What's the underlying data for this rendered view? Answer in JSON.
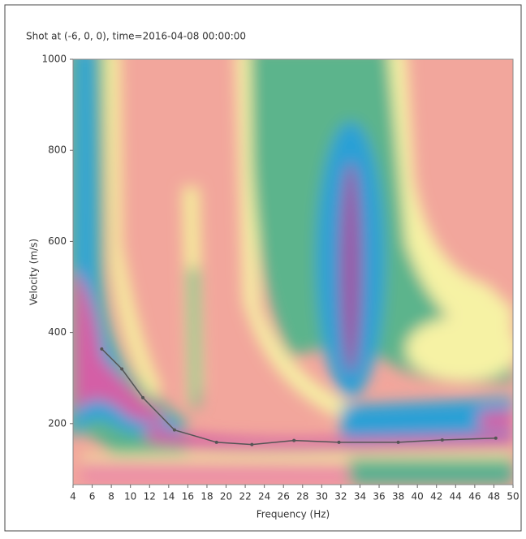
{
  "chart_data": {
    "type": "line",
    "title": "Shot at (-6, 0, 0), time=2016-04-08 00:00:00",
    "x_label": "Frequency (Hz)",
    "y_label": "Velocity (m/s)",
    "xlim": [
      4,
      50
    ],
    "ylim": [
      66,
      1000
    ],
    "xticks": [
      4,
      6,
      8,
      10,
      12,
      14,
      16,
      18,
      20,
      22,
      24,
      26,
      28,
      30,
      32,
      34,
      36,
      38,
      40,
      42,
      44,
      46,
      48,
      50
    ],
    "yticks": [
      200,
      400,
      600,
      800,
      1000
    ],
    "series": [
      {
        "color": "#555555",
        "x": [
          7,
          9.1,
          11.3,
          14.6,
          19,
          22.7,
          27.1,
          31.8,
          38,
          42.6,
          48.2
        ],
        "values": [
          364,
          320,
          257,
          186,
          159,
          154,
          163,
          159,
          159,
          164,
          168
        ]
      }
    ]
  }
}
